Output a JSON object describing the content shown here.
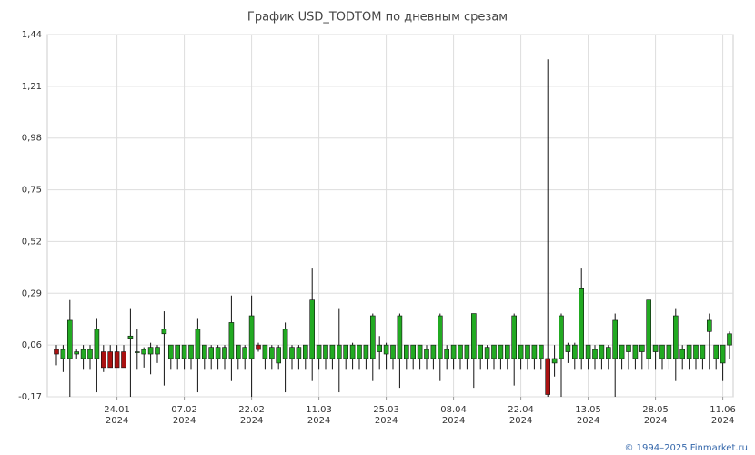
{
  "chart_data": {
    "type": "candlestick",
    "title": "График USD_TODTOM по дневным срезам",
    "footer": "© 1994–2025 Finmarket.ru",
    "up_color": "#22aa22",
    "down_color": "#aa1111",
    "grid": true,
    "ylim": [
      -0.17,
      1.44
    ],
    "yticks": [
      {
        "value": -0.17,
        "label": "-0,17"
      },
      {
        "value": 0.06,
        "label": "0,06"
      },
      {
        "value": 0.29,
        "label": "0,29"
      },
      {
        "value": 0.52,
        "label": "0,52"
      },
      {
        "value": 0.75,
        "label": "0,75"
      },
      {
        "value": 0.98,
        "label": "0,98"
      },
      {
        "value": 1.21,
        "label": "1,21"
      },
      {
        "value": 1.44,
        "label": "1,44"
      }
    ],
    "categories": [
      null,
      null,
      null,
      null,
      null,
      null,
      null,
      null,
      null,
      "24.01",
      null,
      null,
      null,
      null,
      null,
      null,
      null,
      null,
      null,
      "07.02",
      null,
      null,
      null,
      null,
      null,
      null,
      null,
      null,
      null,
      "22.02",
      null,
      null,
      null,
      null,
      null,
      null,
      null,
      null,
      null,
      "11.03",
      null,
      null,
      null,
      null,
      null,
      null,
      null,
      null,
      null,
      "25.03",
      null,
      null,
      null,
      null,
      null,
      null,
      null,
      null,
      null,
      "08.04",
      null,
      null,
      null,
      null,
      null,
      null,
      null,
      null,
      null,
      "22.04",
      null,
      null,
      null,
      null,
      null,
      null,
      null,
      null,
      null,
      "13.05",
      null,
      null,
      null,
      null,
      null,
      null,
      null,
      null,
      null,
      "28.05",
      null,
      null,
      null,
      null,
      null,
      null,
      null,
      null,
      null,
      "11.06",
      null
    ],
    "category_years": [
      null,
      null,
      null,
      null,
      null,
      null,
      null,
      null,
      null,
      "2024",
      null,
      null,
      null,
      null,
      null,
      null,
      null,
      null,
      null,
      "2024",
      null,
      null,
      null,
      null,
      null,
      null,
      null,
      null,
      null,
      "2024",
      null,
      null,
      null,
      null,
      null,
      null,
      null,
      null,
      null,
      "2024",
      null,
      null,
      null,
      null,
      null,
      null,
      null,
      null,
      null,
      "2024",
      null,
      null,
      null,
      null,
      null,
      null,
      null,
      null,
      null,
      "2024",
      null,
      null,
      null,
      null,
      null,
      null,
      null,
      null,
      null,
      "2024",
      null,
      null,
      null,
      null,
      null,
      null,
      null,
      null,
      null,
      "2024",
      null,
      null,
      null,
      null,
      null,
      null,
      null,
      null,
      null,
      "2024",
      null,
      null,
      null,
      null,
      null,
      null,
      null,
      null,
      null,
      "2024",
      null
    ],
    "open": [
      0.04,
      0.0,
      0.0,
      0.02,
      0.0,
      0.0,
      0.0,
      0.03,
      0.03,
      0.03,
      0.03,
      0.09,
      0.03,
      0.02,
      0.02,
      0.02,
      0.11,
      0.0,
      0.0,
      0.0,
      0.0,
      0.0,
      0.0,
      0.0,
      0.0,
      0.0,
      0.0,
      0.0,
      0.0,
      0.0,
      0.06,
      0.0,
      0.0,
      -0.02,
      0.0,
      0.0,
      0.0,
      0.0,
      0.0,
      0.0,
      0.0,
      0.0,
      0.0,
      0.0,
      0.0,
      0.0,
      0.0,
      0.0,
      0.03,
      0.02,
      0.0,
      0.0,
      0.0,
      0.0,
      0.0,
      0.0,
      0.0,
      0.0,
      0.0,
      0.0,
      0.0,
      0.0,
      0.0,
      0.0,
      0.0,
      0.0,
      0.0,
      0.0,
      0.0,
      0.0,
      0.0,
      0.0,
      0.0,
      0.0,
      -0.02,
      0.0,
      0.03,
      0.0,
      0.0,
      0.0,
      0.0,
      0.0,
      0.0,
      0.0,
      0.0,
      0.03,
      0.0,
      0.03,
      0.0,
      0.03,
      0.0,
      0.0,
      0.0,
      0.0,
      0.0,
      0.0,
      0.0,
      0.12,
      0.0,
      -0.02,
      0.06
    ],
    "high": [
      0.06,
      0.06,
      0.26,
      0.04,
      0.06,
      0.06,
      0.18,
      0.06,
      0.06,
      0.06,
      0.06,
      0.22,
      0.13,
      0.05,
      0.07,
      0.06,
      0.21,
      0.06,
      0.06,
      0.06,
      0.06,
      0.18,
      0.06,
      0.06,
      0.06,
      0.06,
      0.28,
      0.06,
      0.06,
      0.28,
      0.07,
      0.06,
      0.06,
      0.06,
      0.16,
      0.06,
      0.06,
      0.06,
      0.4,
      0.06,
      0.06,
      0.06,
      0.22,
      0.06,
      0.07,
      0.06,
      0.06,
      0.2,
      0.1,
      0.07,
      0.06,
      0.2,
      0.06,
      0.06,
      0.06,
      0.06,
      0.06,
      0.2,
      0.06,
      0.06,
      0.06,
      0.06,
      0.2,
      0.06,
      0.06,
      0.06,
      0.06,
      0.06,
      0.2,
      0.06,
      0.06,
      0.06,
      0.06,
      1.33,
      0.06,
      0.2,
      0.07,
      0.07,
      0.4,
      0.06,
      0.06,
      0.06,
      0.06,
      0.2,
      0.06,
      0.06,
      0.06,
      0.06,
      0.26,
      0.06,
      0.06,
      0.06,
      0.22,
      0.06,
      0.06,
      0.06,
      0.06,
      0.2,
      0.06,
      0.06,
      0.12
    ],
    "low": [
      -0.03,
      -0.06,
      -0.17,
      0.0,
      -0.05,
      -0.05,
      -0.15,
      -0.06,
      -0.04,
      -0.04,
      -0.04,
      -0.17,
      -0.05,
      -0.04,
      -0.07,
      -0.02,
      -0.12,
      -0.05,
      -0.05,
      -0.05,
      -0.05,
      -0.15,
      -0.05,
      -0.05,
      -0.05,
      -0.05,
      -0.1,
      -0.05,
      -0.05,
      -0.17,
      0.03,
      -0.05,
      -0.05,
      -0.05,
      -0.15,
      -0.05,
      -0.05,
      -0.05,
      -0.1,
      -0.05,
      -0.05,
      -0.05,
      -0.15,
      -0.05,
      -0.05,
      -0.05,
      -0.05,
      -0.1,
      -0.05,
      -0.05,
      -0.05,
      -0.13,
      -0.05,
      -0.05,
      -0.05,
      -0.05,
      -0.05,
      -0.1,
      -0.05,
      -0.05,
      -0.05,
      -0.05,
      -0.13,
      -0.05,
      -0.05,
      -0.05,
      -0.05,
      -0.05,
      -0.12,
      -0.05,
      -0.05,
      -0.05,
      -0.05,
      -0.17,
      -0.08,
      -0.17,
      -0.02,
      -0.05,
      -0.05,
      -0.05,
      -0.05,
      -0.05,
      -0.05,
      -0.17,
      -0.05,
      -0.05,
      -0.05,
      -0.05,
      -0.05,
      -0.05,
      -0.05,
      -0.05,
      -0.1,
      -0.05,
      -0.05,
      -0.05,
      -0.05,
      -0.05,
      -0.05,
      -0.1,
      0.0
    ],
    "close": [
      0.02,
      0.04,
      0.17,
      0.03,
      0.04,
      0.04,
      0.13,
      -0.04,
      -0.04,
      -0.04,
      -0.04,
      0.1,
      0.03,
      0.04,
      0.05,
      0.05,
      0.13,
      0.06,
      0.06,
      0.06,
      0.06,
      0.13,
      0.06,
      0.05,
      0.05,
      0.05,
      0.16,
      0.06,
      0.05,
      0.19,
      0.04,
      0.06,
      0.05,
      0.05,
      0.13,
      0.05,
      0.05,
      0.06,
      0.26,
      0.06,
      0.06,
      0.06,
      0.06,
      0.06,
      0.06,
      0.06,
      0.06,
      0.19,
      0.06,
      0.06,
      0.06,
      0.19,
      0.06,
      0.06,
      0.06,
      0.04,
      0.06,
      0.19,
      0.04,
      0.06,
      0.06,
      0.06,
      0.2,
      0.06,
      0.05,
      0.06,
      0.06,
      0.06,
      0.19,
      0.06,
      0.06,
      0.06,
      0.06,
      -0.16,
      0.0,
      0.19,
      0.06,
      0.06,
      0.31,
      0.06,
      0.04,
      0.06,
      0.05,
      0.17,
      0.06,
      0.06,
      0.06,
      0.06,
      0.26,
      0.06,
      0.06,
      0.06,
      0.19,
      0.04,
      0.06,
      0.06,
      0.06,
      0.17,
      0.06,
      0.06,
      0.11
    ]
  }
}
